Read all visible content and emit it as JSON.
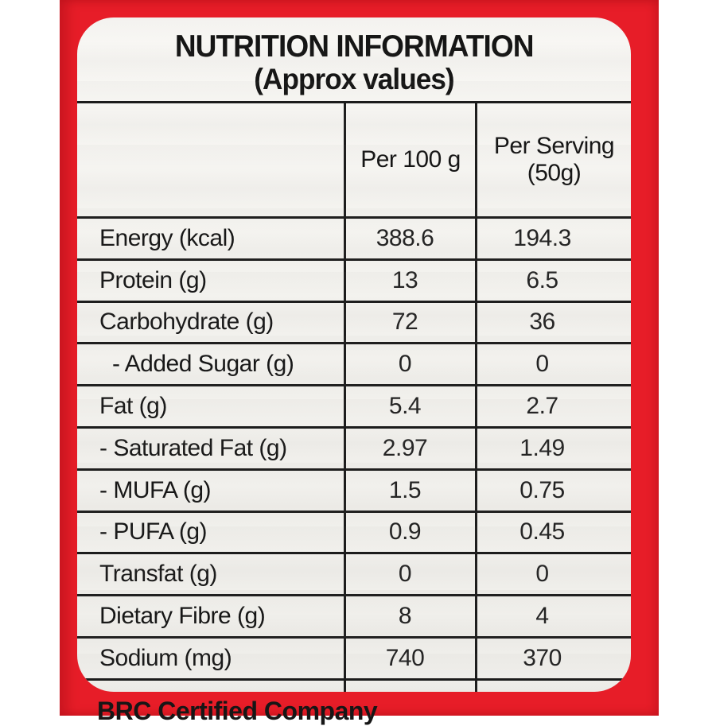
{
  "panel": {
    "title": "NUTRITION INFORMATION",
    "subtitle": "(Approx values)"
  },
  "columns": {
    "per_100g": "Per 100 g",
    "per_serving_line1": "Per Serving",
    "per_serving_line2": "(50g)"
  },
  "table": {
    "rows": [
      {
        "label": "Energy (kcal)",
        "per_100g": "388.6",
        "per_serving": "194.3"
      },
      {
        "label": "Protein (g)",
        "per_100g": "13",
        "per_serving": "6.5"
      },
      {
        "label": "Carbohydrate (g)",
        "per_100g": "72",
        "per_serving": "36"
      },
      {
        "label": "- Added Sugar (g)",
        "per_100g": "0",
        "per_serving": "0"
      },
      {
        "label": "Fat (g)",
        "per_100g": "5.4",
        "per_serving": "2.7"
      },
      {
        "label": "- Saturated Fat (g)",
        "per_100g": "2.97",
        "per_serving": "1.49"
      },
      {
        "label": "- MUFA (g)",
        "per_100g": "1.5",
        "per_serving": "0.75"
      },
      {
        "label": "- PUFA (g)",
        "per_100g": "0.9",
        "per_serving": "0.45"
      },
      {
        "label": "Transfat (g)",
        "per_100g": "0",
        "per_serving": "0"
      },
      {
        "label": "Dietary Fibre (g)",
        "per_100g": "8",
        "per_serving": "4"
      },
      {
        "label": "Sodium (mg)",
        "per_100g": "740",
        "per_serving": "370"
      }
    ]
  },
  "footer": {
    "text": "BRC Certified Company"
  },
  "colors": {
    "package_red": "#e71d28",
    "panel_background": "#f3f2ee",
    "grid_line": "#1b1b1b",
    "text": "#161616"
  }
}
